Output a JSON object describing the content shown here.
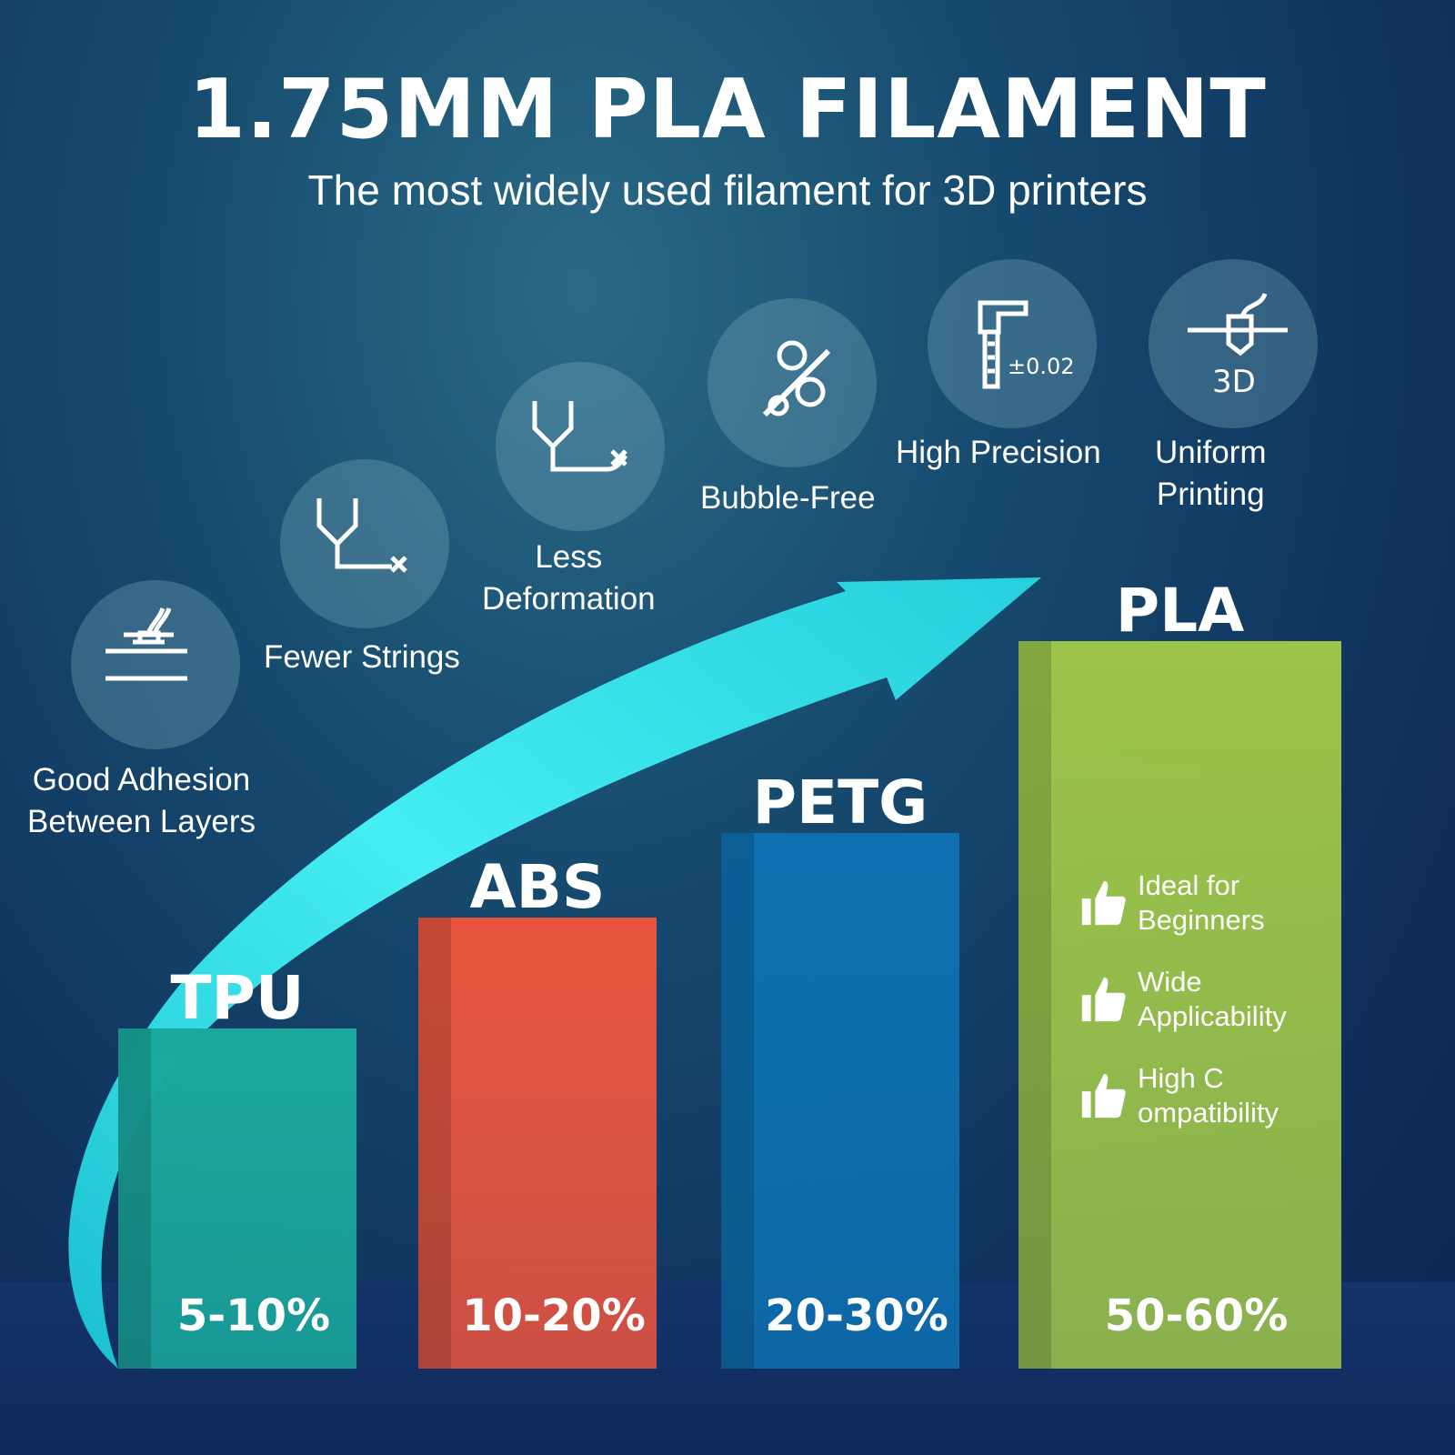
{
  "header": {
    "title": "1.75MM PLA FILAMENT",
    "subtitle": "The most widely used filament for 3D printers"
  },
  "features": [
    {
      "icon": "nozzle-bed-icon",
      "label_lines": [
        "Good Adhesion",
        "Between Layers"
      ]
    },
    {
      "icon": "fewer-strings-icon",
      "label_lines": [
        "Fewer Strings"
      ]
    },
    {
      "icon": "less-deformation-icon",
      "label_lines": [
        "Less",
        "Deformation"
      ]
    },
    {
      "icon": "bubble-free-icon",
      "label_lines": [
        "Bubble-Free"
      ]
    },
    {
      "icon": "caliper-icon",
      "icon_text": "±0.02",
      "label_lines": [
        "High Precision"
      ]
    },
    {
      "icon": "3d-printer-nozzle-icon",
      "icon_text": "3D",
      "label_lines": [
        "Uniform",
        "Printing"
      ]
    }
  ],
  "pla_perks": [
    {
      "icon": "thumbs-up-icon",
      "lines": [
        "Ideal for",
        "Beginners"
      ]
    },
    {
      "icon": "thumbs-up-icon",
      "lines": [
        "Wide",
        "Applicability"
      ]
    },
    {
      "icon": "thumbs-up-icon",
      "lines": [
        "High C",
        "ompatibility"
      ]
    }
  ],
  "colors": {
    "arrow": "#3de0e8",
    "TPU": "#1aa89e",
    "ABS": "#e8553f",
    "PETG": "#0e70b0",
    "PLA": "#9cc44a"
  },
  "chart_data": {
    "type": "bar",
    "categories": [
      "TPU",
      "ABS",
      "PETG",
      "PLA"
    ],
    "value_labels": [
      "5-10%",
      "10-20%",
      "20-30%",
      "50-60%"
    ],
    "values": [
      [
        5,
        10
      ],
      [
        10,
        20
      ],
      [
        20,
        30
      ],
      [
        50,
        60
      ]
    ]
  }
}
